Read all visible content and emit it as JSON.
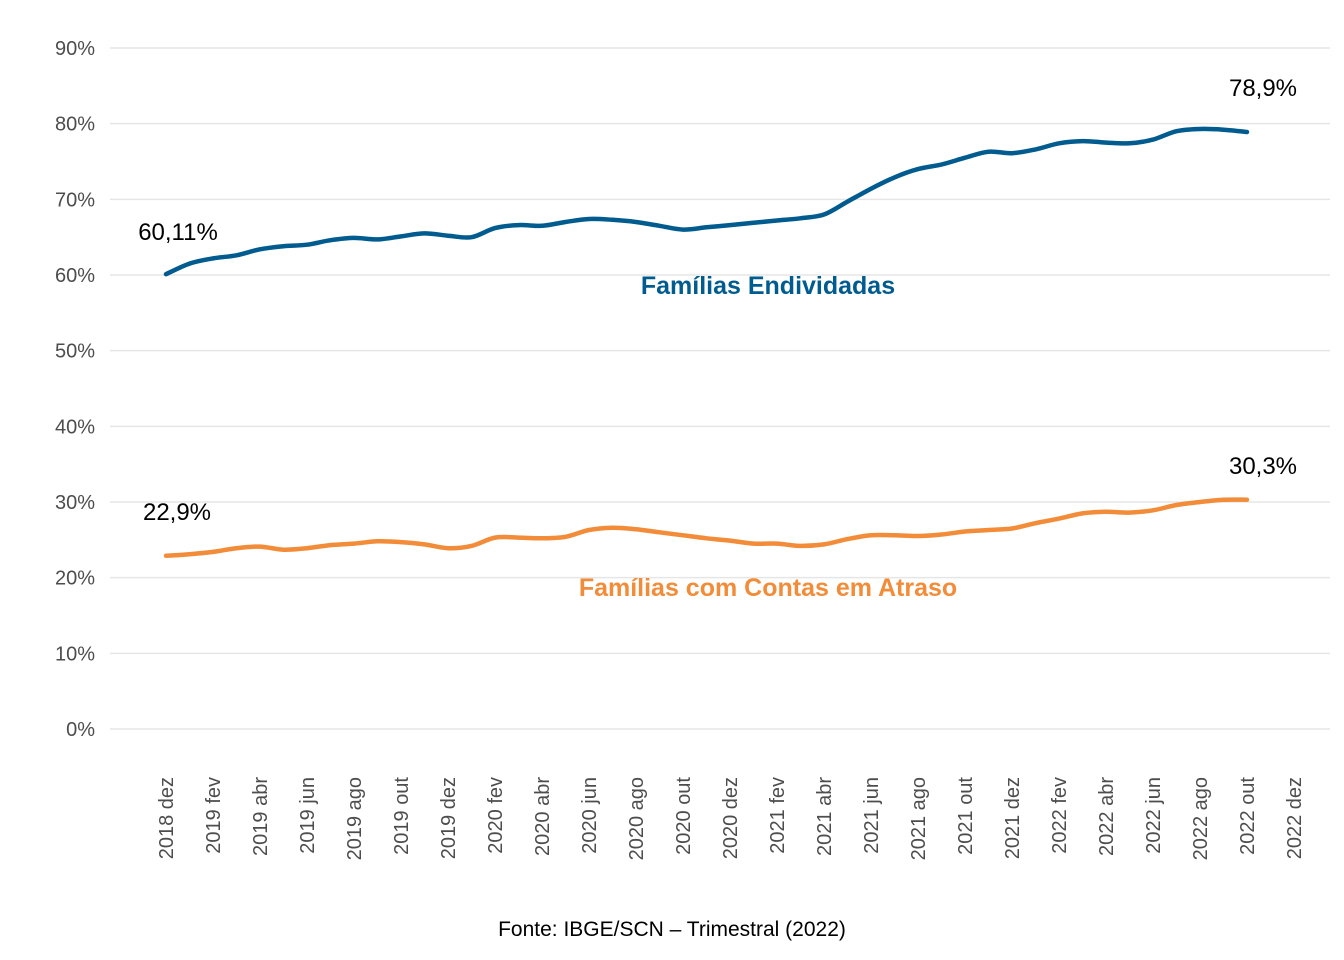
{
  "chart_data": {
    "type": "line",
    "x": [
      "2018 dez",
      "2019 jan",
      "2019 fev",
      "2019 mar",
      "2019 abr",
      "2019 mai",
      "2019 jun",
      "2019 jul",
      "2019 ago",
      "2019 set",
      "2019 out",
      "2019 nov",
      "2019 dez",
      "2020 jan",
      "2020 fev",
      "2020 mar",
      "2020 abr",
      "2020 mai",
      "2020 jun",
      "2020 jul",
      "2020 ago",
      "2020 set",
      "2020 out",
      "2020 nov",
      "2020 dez",
      "2021 jan",
      "2021 fev",
      "2021 mar",
      "2021 abr",
      "2021 mai",
      "2021 jun",
      "2021 jul",
      "2021 ago",
      "2021 set",
      "2021 out",
      "2021 nov",
      "2021 dez",
      "2022 jan",
      "2022 fev",
      "2022 mar",
      "2022 abr",
      "2022 mai",
      "2022 jun",
      "2022 jul",
      "2022 ago",
      "2022 set",
      "2022 out"
    ],
    "x_tick_labels": [
      "2018 dez",
      "2019 fev",
      "2019 abr",
      "2019 jun",
      "2019 ago",
      "2019 out",
      "2019 dez",
      "2020 fev",
      "2020 abr",
      "2020 jun",
      "2020 ago",
      "2020 out",
      "2020 dez",
      "2021 fev",
      "2021 abr",
      "2021 jun",
      "2021 ago",
      "2021 out",
      "2021 dez",
      "2022 fev",
      "2022 abr",
      "2022 jun",
      "2022 ago",
      "2022 out",
      "2022 dez"
    ],
    "y_tick_labels": [
      "0%",
      "10%",
      "20%",
      "30%",
      "40%",
      "50%",
      "60%",
      "70%",
      "80%",
      "90%"
    ],
    "ylim": [
      0,
      90
    ],
    "grid": true,
    "series": [
      {
        "name": "Famílias Endividadas",
        "color": "#005b8f",
        "values": [
          60.11,
          61.5,
          62.2,
          62.6,
          63.4,
          63.8,
          64.0,
          64.6,
          64.9,
          64.7,
          65.1,
          65.5,
          65.2,
          65.0,
          66.2,
          66.6,
          66.5,
          67.0,
          67.4,
          67.3,
          67.0,
          66.5,
          66.0,
          66.3,
          66.6,
          66.9,
          67.2,
          67.5,
          68.0,
          69.7,
          71.4,
          72.9,
          74.0,
          74.6,
          75.5,
          76.3,
          76.1,
          76.6,
          77.4,
          77.7,
          77.5,
          77.4,
          77.9,
          79.0,
          79.3,
          79.2,
          78.9
        ]
      },
      {
        "name": "Famílias com Contas em Atraso",
        "color": "#f28c38",
        "values": [
          22.9,
          23.1,
          23.4,
          23.9,
          24.1,
          23.7,
          23.9,
          24.3,
          24.5,
          24.8,
          24.7,
          24.4,
          23.9,
          24.2,
          25.3,
          25.3,
          25.2,
          25.4,
          26.3,
          26.6,
          26.4,
          26.0,
          25.6,
          25.2,
          24.9,
          24.5,
          24.5,
          24.2,
          24.4,
          25.1,
          25.6,
          25.6,
          25.5,
          25.7,
          26.1,
          26.3,
          26.5,
          27.2,
          27.8,
          28.5,
          28.7,
          28.6,
          28.9,
          29.6,
          30.0,
          30.3,
          30.3
        ]
      }
    ],
    "annotations": {
      "endividadas_start": "60,11%",
      "endividadas_end": "78,9%",
      "atraso_start": "22,9%",
      "atraso_end": "30,3%"
    }
  },
  "source": "Fonte: IBGE/SCN – Trimestral (2022)"
}
